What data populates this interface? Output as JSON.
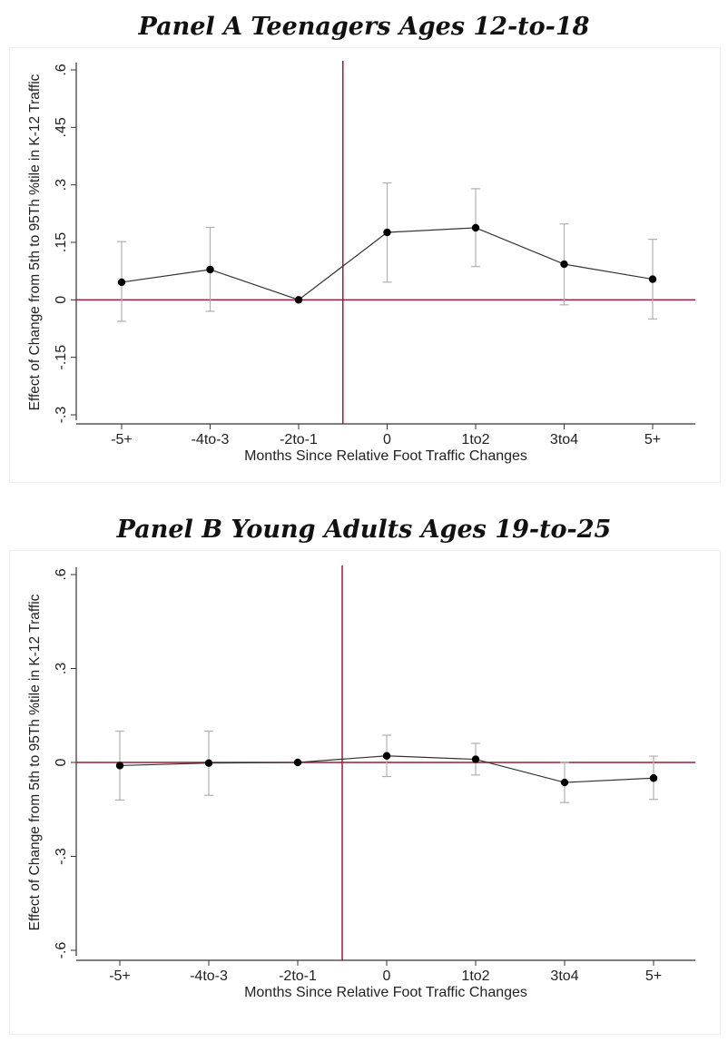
{
  "colors": {
    "zero_line": "#9b1b3b",
    "event_line": "#9b1b3b",
    "point_line": "#333333",
    "point_fill": "#000000",
    "error_bar": "#b0b0b0",
    "axis": "#333333",
    "text": "#222222"
  },
  "chart_data": [
    {
      "type": "line",
      "title": "Panel A Teenagers Ages 12-to-18",
      "xlabel": "Months Since Relative Foot Traffic Changes",
      "ylabel": "Effect of Change from 5th to 95Th %tile in K-12 Traffic",
      "categories": [
        "-5+",
        "-4to-3",
        "-2to-1",
        "0",
        "1to2",
        "3to4",
        "5+"
      ],
      "values": [
        0.046,
        0.079,
        0.0,
        0.176,
        0.188,
        0.093,
        0.054
      ],
      "ci_low": [
        -0.056,
        -0.03,
        0.0,
        0.046,
        0.087,
        -0.013,
        -0.05
      ],
      "ci_high": [
        0.152,
        0.189,
        0.0,
        0.305,
        0.29,
        0.198,
        0.158
      ],
      "yticks": [
        0.6,
        0.45,
        0.3,
        0.15,
        0,
        -0.15,
        -0.3
      ],
      "ytick_labels": [
        ".6",
        ".45",
        ".3",
        ".15",
        "0",
        "-.15",
        "-.3"
      ],
      "ylim": [
        -0.3,
        0.6
      ],
      "event_line_after_category": "-2to-1"
    },
    {
      "type": "line",
      "title": "Panel B Young Adults Ages 19-to-25",
      "xlabel": "Months Since Relative Foot Traffic Changes",
      "ylabel": "Effect of Change from 5th to 95Th %tile in K-12 Traffic",
      "categories": [
        "-5+",
        "-4to-3",
        "-2to-1",
        "0",
        "1to2",
        "3to4",
        "5+"
      ],
      "values": [
        -0.01,
        -0.002,
        0.0,
        0.021,
        0.01,
        -0.064,
        -0.05
      ],
      "ci_low": [
        -0.12,
        -0.105,
        0.0,
        -0.045,
        -0.04,
        -0.128,
        -0.118
      ],
      "ci_high": [
        0.1,
        0.1,
        0.0,
        0.087,
        0.061,
        0.0,
        0.02
      ],
      "yticks": [
        0.6,
        0.3,
        0,
        -0.3,
        -0.6
      ],
      "ytick_labels": [
        ".6",
        ".3",
        "0",
        "-.3",
        "-.6"
      ],
      "ylim": [
        -0.6,
        0.6
      ],
      "event_line_after_category": "-2to-1"
    }
  ]
}
